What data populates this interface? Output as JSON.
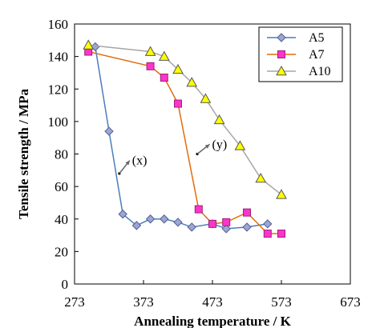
{
  "chart_data": {
    "type": "line",
    "title": "",
    "xlabel": "Annealing temperature / K",
    "ylabel": "Tensile strength / MPa",
    "xlim": [
      273,
      673
    ],
    "ylim": [
      0,
      160
    ],
    "xticks": [
      273,
      373,
      473,
      573,
      673
    ],
    "yticks": [
      0,
      20,
      40,
      60,
      80,
      100,
      120,
      140,
      160
    ],
    "xtick_labels": [
      "273",
      "373",
      "473",
      "573",
      "673"
    ],
    "ytick_labels": [
      "0",
      "20",
      "40",
      "60",
      "80",
      "100",
      "120",
      "140",
      "160"
    ],
    "grid": false,
    "legend_position": "top-right",
    "series": [
      {
        "name": "A5",
        "marker": "diamond",
        "line_color": "#4a7ebb",
        "marker_fill": "#9aa6d8",
        "marker_stroke": "#555e8c",
        "x": [
          293,
          303,
          323,
          343,
          363,
          383,
          403,
          423,
          443,
          473,
          493,
          523,
          553
        ],
        "y": [
          145,
          146,
          94,
          43,
          36,
          40,
          40,
          38,
          35,
          37,
          34,
          35,
          37
        ]
      },
      {
        "name": "A7",
        "marker": "square",
        "line_color": "#e36c0a",
        "marker_fill": "#ff33cc",
        "marker_stroke": "#992277",
        "x": [
          293,
          383,
          403,
          423,
          453,
          473,
          493,
          523,
          553,
          573
        ],
        "y": [
          143,
          134,
          127,
          111,
          46,
          37,
          38,
          44,
          31,
          31
        ]
      },
      {
        "name": "A10",
        "marker": "triangle",
        "line_color": "#a6a6a6",
        "marker_fill": "#ffff00",
        "marker_stroke": "#555555",
        "x": [
          293,
          383,
          403,
          423,
          443,
          463,
          483,
          513,
          543,
          573
        ],
        "y": [
          147,
          143,
          140,
          132,
          124,
          114,
          101,
          85,
          65,
          55
        ]
      }
    ],
    "annotations": [
      {
        "label": "(x)",
        "from": [
          338,
          68
        ],
        "to": [
          353,
          76
        ]
      },
      {
        "label": "(y)",
        "from": [
          451,
          80
        ],
        "to": [
          469,
          86
        ]
      }
    ]
  }
}
